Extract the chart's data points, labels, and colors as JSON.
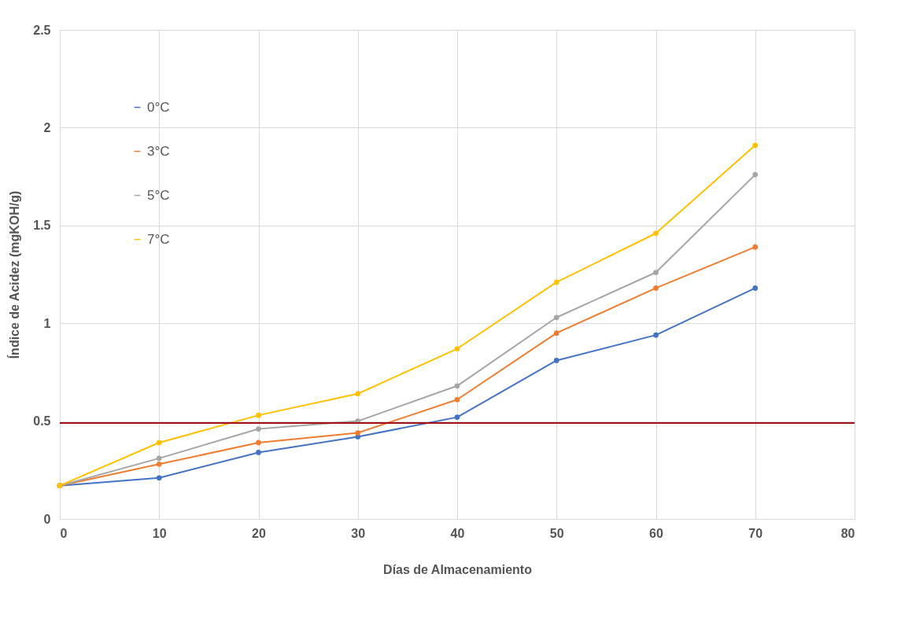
{
  "chart_data": {
    "type": "line",
    "xlabel": "Días de Almacenamiento",
    "ylabel": "Índice de Acidez (mgKOH/g)",
    "x": [
      0,
      10,
      20,
      30,
      40,
      50,
      60,
      70
    ],
    "series": [
      {
        "name": "0°C",
        "color": "#4472c4",
        "values": [
          0.17,
          0.21,
          0.34,
          0.42,
          0.52,
          0.81,
          0.94,
          1.18
        ]
      },
      {
        "name": "3°C",
        "color": "#ed7d31",
        "values": [
          0.17,
          0.28,
          0.39,
          0.44,
          0.61,
          0.95,
          1.18,
          1.39
        ]
      },
      {
        "name": "5°C",
        "color": "#a5a5a5",
        "values": [
          0.17,
          0.31,
          0.46,
          0.5,
          0.68,
          1.03,
          1.26,
          1.76
        ]
      },
      {
        "name": "7°C",
        "color": "#ffc000",
        "values": [
          0.17,
          0.39,
          0.53,
          0.64,
          0.87,
          1.21,
          1.46,
          1.91
        ]
      }
    ],
    "xlim": [
      0,
      80
    ],
    "xticks": [
      0,
      10,
      20,
      30,
      40,
      50,
      60,
      70,
      80
    ],
    "ylim": [
      0,
      2.5
    ],
    "yticks": [
      0,
      0.5,
      1,
      1.5,
      2,
      2.5
    ],
    "ref_lines": [
      {
        "axis": "y",
        "value": 0.49,
        "color": "#a50f15"
      }
    ],
    "grid": true,
    "legend": "top left",
    "marker": "circle",
    "line_style": "solid"
  }
}
